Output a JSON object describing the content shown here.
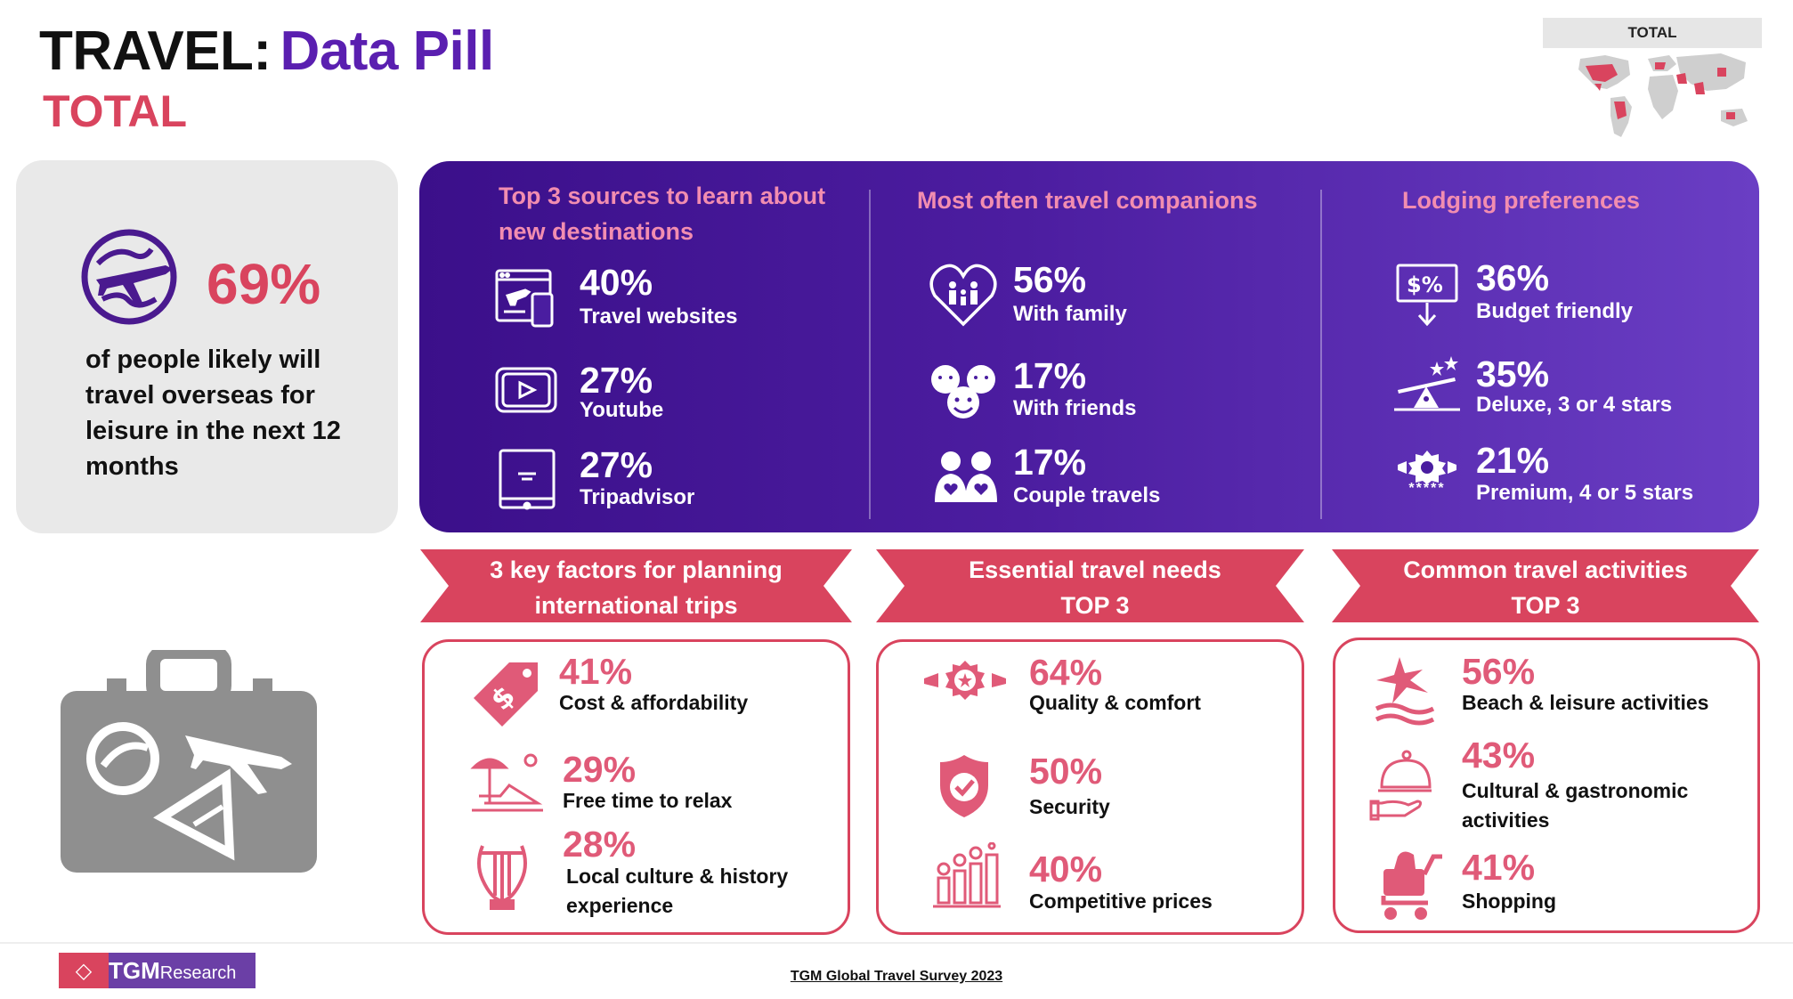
{
  "header": {
    "title_key": "TRAVEL:",
    "title_value": "Data Pill",
    "subtitle": "TOTAL",
    "map_label": "TOTAL"
  },
  "headline": {
    "percent": "69%",
    "text": "of people likely will travel overseas for leisure in the next 12 months"
  },
  "sources": {
    "title": "Top 3 sources to learn about new destinations",
    "items": [
      {
        "percent": "40%",
        "label": "Travel websites",
        "icon": "website-icon"
      },
      {
        "percent": "27%",
        "label": "Youtube",
        "icon": "video-play-icon"
      },
      {
        "percent": "27%",
        "label": "Tripadvisor",
        "icon": "tablet-icon"
      }
    ]
  },
  "companions": {
    "title": "Most often travel companions",
    "items": [
      {
        "percent": "56%",
        "label": "With family",
        "icon": "family-heart-icon"
      },
      {
        "percent": "17%",
        "label": "With friends",
        "icon": "friends-faces-icon"
      },
      {
        "percent": "17%",
        "label": "Couple travels",
        "icon": "couple-icon"
      }
    ]
  },
  "lodging": {
    "title": "Lodging preferences",
    "items": [
      {
        "percent": "36%",
        "label": "Budget friendly",
        "icon": "discount-board-icon"
      },
      {
        "percent": "35%",
        "label": "Deluxe, 3 or 4 stars",
        "icon": "seesaw-stars-icon"
      },
      {
        "percent": "21%",
        "label": "Premium, 4 or 5 stars",
        "icon": "premium-badge-icon",
        "icon_text": "*****"
      }
    ]
  },
  "factors": {
    "ribbon": "3 key factors for planning international trips",
    "items": [
      {
        "percent": "41%",
        "label": "Cost & affordability",
        "icon": "price-tag-icon"
      },
      {
        "percent": "29%",
        "label": "Free time to relax",
        "icon": "beach-chair-icon"
      },
      {
        "percent": "28%",
        "label": "Local culture & history experience",
        "icon": "lyre-icon"
      }
    ]
  },
  "needs": {
    "ribbon_line1": "Essential travel needs",
    "ribbon_line2": "TOP 3",
    "items": [
      {
        "percent": "64%",
        "label": "Quality & comfort",
        "icon": "quality-badge-icon"
      },
      {
        "percent": "50%",
        "label": "Security",
        "icon": "shield-check-icon"
      },
      {
        "percent": "40%",
        "label": "Competitive prices",
        "icon": "coins-chart-icon"
      }
    ]
  },
  "activities": {
    "ribbon_line1": "Common travel activities",
    "ribbon_line2": "TOP 3",
    "items": [
      {
        "percent": "56%",
        "label": "Beach & leisure activities",
        "icon": "palm-wave-icon"
      },
      {
        "percent": "43%",
        "label": "Cultural & gastronomic activities",
        "icon": "cloche-icon"
      },
      {
        "percent": "41%",
        "label": "Shopping",
        "icon": "shopping-cart-icon"
      }
    ]
  },
  "footer": {
    "logo_text": "TGM",
    "logo_suffix": "Research",
    "source": "TGM Global Travel Survey 2023"
  },
  "colors": {
    "accent": "#d9445e",
    "purple": "#5a1fb0",
    "band_start": "#3b0f8a",
    "band_end": "#6a3ec4",
    "pink_text": "#f28db0"
  }
}
